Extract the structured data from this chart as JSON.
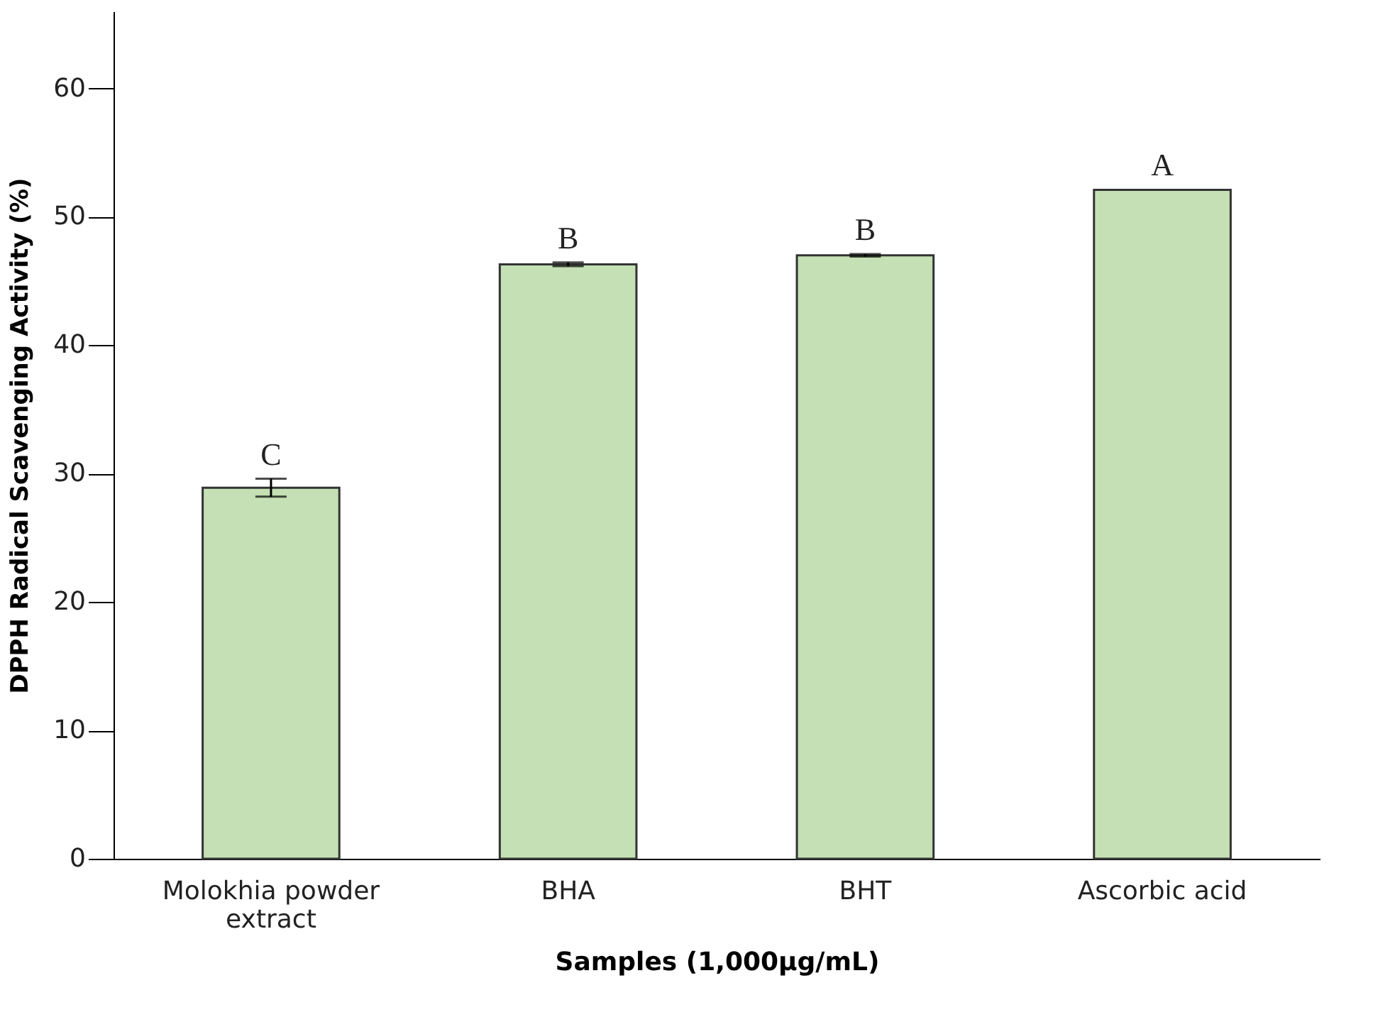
{
  "chart_data": {
    "type": "bar",
    "xlabel": "Samples (1,000µg/mL)",
    "ylabel": "DPPH Radical Scavenging Activity (%)",
    "categories": [
      "Molokhia powder extract",
      "BHA",
      "BHT",
      "Ascorbic acid"
    ],
    "values": [
      28.9,
      46.3,
      47.0,
      52.1
    ],
    "errors": [
      0.7,
      0.15,
      0.1,
      null
    ],
    "color": "#c5e0b4",
    "ylim": [
      0,
      66
    ],
    "yticks": [
      0,
      10,
      20,
      30,
      40,
      50,
      60
    ],
    "grid": false,
    "annotations": [
      "C",
      "B",
      "B",
      "A"
    ]
  }
}
